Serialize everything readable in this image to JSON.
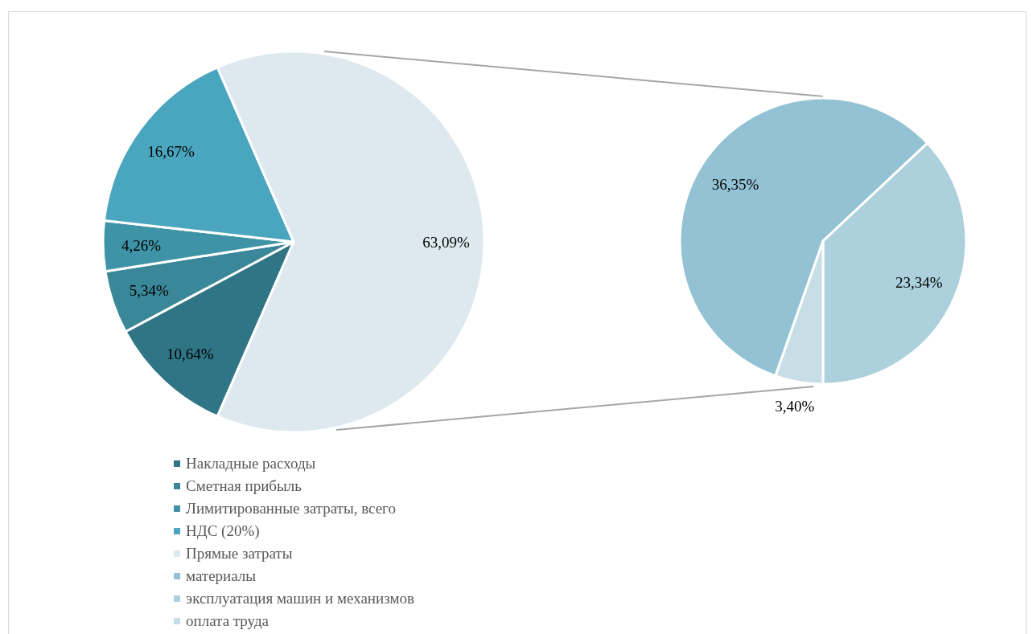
{
  "chart_data": [
    {
      "type": "pie",
      "categories": [
        "Накладные расходы",
        "Сметная прибыль",
        "Лимитированные затраты, всего",
        "НДС (20%)",
        "Прямые затраты"
      ],
      "values": [
        10.64,
        5.34,
        4.26,
        16.67,
        63.09
      ],
      "colors": [
        "#2f7586",
        "#3a8799",
        "#3f93a6",
        "#4aa6bf",
        "#dde9ef"
      ],
      "value_labels": [
        "10,64%",
        "5,34%",
        "4,26%",
        "16,67%",
        "63,09%"
      ],
      "legend": "bottom"
    },
    {
      "type": "pie",
      "categories": [
        "материалы",
        "эксплуатация машин и механизмов",
        "оплата труда"
      ],
      "values": [
        36.35,
        23.34,
        3.4
      ],
      "colors": [
        "#92c2d4",
        "#acd0dc",
        "#c7dee6"
      ],
      "value_labels": [
        "36,35%",
        "23,34%",
        "3,40%"
      ],
      "legend": "bottom"
    }
  ]
}
